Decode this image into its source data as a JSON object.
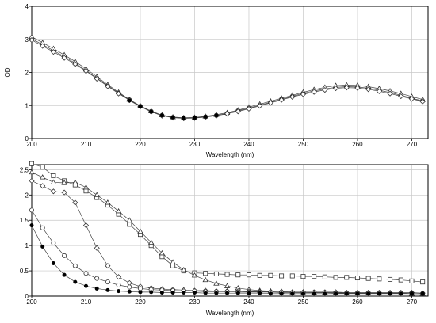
{
  "chart_data": [
    {
      "type": "scatter",
      "xlabel": "Wavelength (nm)",
      "ylabel": "OD",
      "xlim": [
        200,
        273
      ],
      "ylim": [
        0,
        4
      ],
      "xticks": [
        200,
        210,
        220,
        230,
        240,
        250,
        260,
        270
      ],
      "yticks": [
        0,
        1,
        2,
        3,
        4
      ],
      "grid": true,
      "series": [
        {
          "marker": "circle-open",
          "x": [
            200,
            202,
            204,
            206,
            208,
            210,
            212,
            214,
            216,
            218,
            220,
            222,
            224,
            226,
            228,
            230,
            232,
            234,
            236,
            238,
            240,
            242,
            244,
            246,
            248,
            250,
            252,
            254,
            256,
            258,
            260,
            262,
            264,
            266,
            268,
            270,
            272
          ],
          "y": [
            3.02,
            2.84,
            2.66,
            2.48,
            2.28,
            2.06,
            1.83,
            1.6,
            1.38,
            1.17,
            0.98,
            0.82,
            0.7,
            0.64,
            0.62,
            0.63,
            0.66,
            0.7,
            0.76,
            0.84,
            0.92,
            1.01,
            1.1,
            1.19,
            1.28,
            1.37,
            1.44,
            1.5,
            1.55,
            1.57,
            1.56,
            1.52,
            1.46,
            1.39,
            1.31,
            1.22,
            1.14
          ]
        },
        {
          "marker": "triangle-open",
          "x": [
            200,
            202,
            204,
            206,
            208,
            210,
            212,
            214,
            216,
            218,
            220,
            222,
            224,
            226,
            228,
            230,
            232,
            234,
            236,
            238,
            240,
            242,
            244,
            246,
            248,
            250,
            252,
            254,
            256,
            258,
            260,
            262,
            264,
            266,
            268,
            270,
            272
          ],
          "y": [
            3.08,
            2.9,
            2.72,
            2.53,
            2.33,
            2.11,
            1.87,
            1.63,
            1.4,
            1.18,
            0.99,
            0.83,
            0.71,
            0.65,
            0.63,
            0.64,
            0.67,
            0.72,
            0.78,
            0.86,
            0.95,
            1.04,
            1.13,
            1.22,
            1.31,
            1.4,
            1.48,
            1.55,
            1.6,
            1.62,
            1.61,
            1.57,
            1.51,
            1.44,
            1.36,
            1.27,
            1.18
          ]
        },
        {
          "marker": "diamond-open",
          "x": [
            200,
            202,
            204,
            206,
            208,
            210,
            212,
            214,
            216,
            218,
            220,
            222,
            224,
            226,
            228,
            230,
            232,
            234,
            236,
            238,
            240,
            242,
            244,
            246,
            248,
            250,
            252,
            254,
            256,
            258,
            260,
            262,
            264,
            266,
            268,
            270,
            272
          ],
          "y": [
            2.98,
            2.8,
            2.62,
            2.44,
            2.25,
            2.04,
            1.81,
            1.58,
            1.36,
            1.16,
            0.97,
            0.81,
            0.69,
            0.63,
            0.61,
            0.62,
            0.65,
            0.69,
            0.75,
            0.82,
            0.9,
            0.99,
            1.08,
            1.17,
            1.26,
            1.34,
            1.41,
            1.47,
            1.52,
            1.54,
            1.53,
            1.49,
            1.43,
            1.36,
            1.28,
            1.2,
            1.12
          ]
        },
        {
          "marker": "circle-filled",
          "x": [
            218,
            220,
            222,
            224,
            226,
            228,
            230,
            232,
            234
          ],
          "y": [
            1.15,
            0.97,
            0.81,
            0.7,
            0.64,
            0.62,
            0.63,
            0.66,
            0.7
          ]
        }
      ]
    },
    {
      "type": "scatter",
      "xlabel": "Wavelength (nm)",
      "ylabel": "",
      "xlim": [
        200,
        273
      ],
      "ylim": [
        0,
        2.6
      ],
      "xticks": [
        200,
        210,
        220,
        230,
        240,
        250,
        260,
        270
      ],
      "yticks": [
        0,
        0.5,
        1,
        1.5,
        2,
        2.5
      ],
      "grid": true,
      "series": [
        {
          "marker": "square-open",
          "x": [
            200,
            202,
            204,
            206,
            208,
            210,
            212,
            214,
            216,
            218,
            220,
            222,
            224,
            226,
            228,
            230,
            232,
            234,
            236,
            238,
            240,
            242,
            244,
            246,
            248,
            250,
            252,
            254,
            256,
            258,
            260,
            262,
            264,
            266,
            268,
            270,
            272
          ],
          "y": [
            2.62,
            2.55,
            2.38,
            2.28,
            2.2,
            2.08,
            1.95,
            1.8,
            1.62,
            1.42,
            1.22,
            1.0,
            0.78,
            0.6,
            0.5,
            0.46,
            0.45,
            0.44,
            0.43,
            0.42,
            0.42,
            0.41,
            0.41,
            0.4,
            0.4,
            0.39,
            0.39,
            0.38,
            0.37,
            0.37,
            0.36,
            0.35,
            0.34,
            0.33,
            0.32,
            0.3,
            0.28
          ]
        },
        {
          "marker": "triangle-open",
          "x": [
            200,
            202,
            204,
            206,
            208,
            210,
            212,
            214,
            216,
            218,
            220,
            222,
            224,
            226,
            228,
            230,
            232,
            234,
            236,
            238,
            240,
            242,
            244,
            246,
            248,
            250,
            252,
            254,
            256,
            258,
            260,
            262,
            264,
            266,
            268,
            270,
            272
          ],
          "y": [
            2.45,
            2.35,
            2.25,
            2.24,
            2.25,
            2.15,
            2.0,
            1.85,
            1.68,
            1.5,
            1.28,
            1.06,
            0.85,
            0.67,
            0.52,
            0.41,
            0.32,
            0.25,
            0.2,
            0.16,
            0.13,
            0.11,
            0.1,
            0.09,
            0.08,
            0.08,
            0.07,
            0.07,
            0.07,
            0.06,
            0.06,
            0.06,
            0.06,
            0.06,
            0.06,
            0.05,
            0.05
          ]
        },
        {
          "marker": "diamond-open",
          "x": [
            200,
            202,
            204,
            206,
            208,
            210,
            212,
            214,
            216,
            218,
            220,
            222,
            224,
            226,
            228,
            230,
            232,
            234,
            236,
            238,
            240,
            242,
            244,
            246,
            248,
            250,
            252,
            254,
            256,
            258,
            260,
            262,
            264,
            266,
            268,
            270,
            272
          ],
          "y": [
            2.28,
            2.18,
            2.07,
            2.05,
            1.85,
            1.4,
            0.95,
            0.6,
            0.38,
            0.26,
            0.19,
            0.16,
            0.14,
            0.13,
            0.12,
            0.11,
            0.11,
            0.1,
            0.1,
            0.1,
            0.09,
            0.09,
            0.09,
            0.09,
            0.08,
            0.08,
            0.08,
            0.08,
            0.08,
            0.07,
            0.07,
            0.07,
            0.07,
            0.07,
            0.07,
            0.07,
            0.06
          ]
        },
        {
          "marker": "circle-open",
          "x": [
            200,
            202,
            204,
            206,
            208,
            210,
            212,
            214,
            216,
            218,
            220,
            222,
            224,
            226,
            228,
            230,
            232,
            234,
            236,
            238,
            240,
            242,
            244,
            246,
            248,
            250,
            252,
            254,
            256,
            258,
            260,
            262,
            264,
            266,
            268,
            270,
            272
          ],
          "y": [
            1.7,
            1.35,
            1.05,
            0.8,
            0.6,
            0.45,
            0.35,
            0.28,
            0.22,
            0.18,
            0.15,
            0.13,
            0.12,
            0.11,
            0.1,
            0.1,
            0.09,
            0.09,
            0.09,
            0.08,
            0.08,
            0.08,
            0.08,
            0.07,
            0.07,
            0.07,
            0.07,
            0.07,
            0.06,
            0.06,
            0.06,
            0.06,
            0.06,
            0.06,
            0.06,
            0.05,
            0.05
          ]
        },
        {
          "marker": "circle-filled",
          "x": [
            200,
            202,
            204,
            206,
            208,
            210,
            212,
            214,
            216,
            218,
            220,
            222,
            224,
            226,
            228,
            230,
            232,
            234,
            236,
            238,
            240,
            242,
            244,
            246,
            248,
            250,
            252,
            254,
            256,
            258,
            260,
            262,
            264,
            266,
            268,
            270,
            272
          ],
          "y": [
            1.4,
            0.98,
            0.65,
            0.42,
            0.28,
            0.2,
            0.15,
            0.12,
            0.1,
            0.09,
            0.08,
            0.08,
            0.07,
            0.07,
            0.07,
            0.07,
            0.06,
            0.06,
            0.06,
            0.06,
            0.06,
            0.06,
            0.05,
            0.05,
            0.05,
            0.05,
            0.05,
            0.05,
            0.05,
            0.05,
            0.05,
            0.05,
            0.05,
            0.05,
            0.05,
            0.05,
            0.05
          ]
        }
      ]
    }
  ]
}
